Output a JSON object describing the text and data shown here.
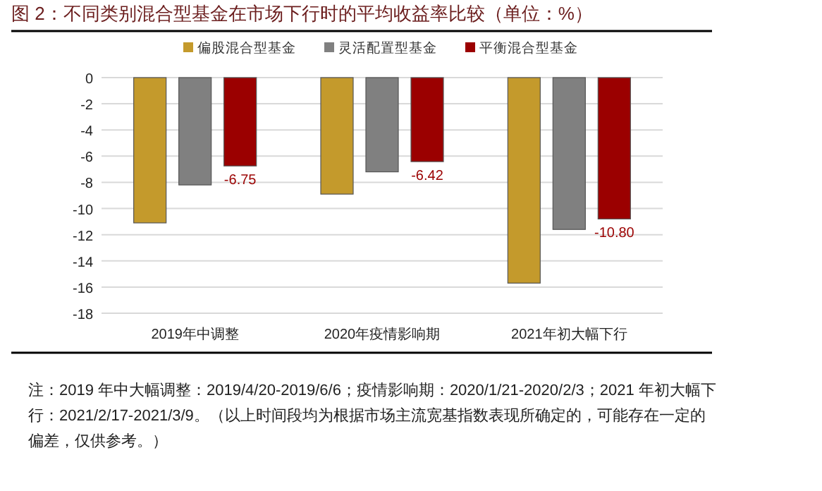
{
  "chart_data": {
    "type": "bar",
    "title": "图 2：不同类别混合型基金在市场下行时的平均收益率比较（单位：%）",
    "categories": [
      "2019年中调整",
      "2020年疫情影响期",
      "2021年初大幅下行"
    ],
    "series": [
      {
        "name": "偏股混合型基金",
        "color": "#c49a2c",
        "values": [
          -11.1,
          -8.9,
          -15.7
        ]
      },
      {
        "name": "灵活配置型基金",
        "color": "#808080",
        "values": [
          -8.2,
          -7.2,
          -11.6
        ]
      },
      {
        "name": "平衡混合型基金",
        "color": "#9b0000",
        "values": [
          -6.75,
          -6.42,
          -10.8
        ],
        "value_labels": [
          "-6.75",
          "-6.42",
          "-10.80"
        ]
      }
    ],
    "ylim": [
      -18,
      0
    ],
    "yticks": [
      0,
      -2,
      -4,
      -6,
      -8,
      -10,
      -12,
      -14,
      -16,
      -18
    ],
    "grid": "y",
    "legend": "top",
    "annotations": [
      "注：2019 年中大幅调整：2019/4/20-2019/6/6；疫情影响期：2020/1/21-2020/2/3；2021 年初大幅下行：2021/2/17-2021/3/9。（以上时间段均为根据市场主流宽基指数表现所确定的，可能存在一定的偏差，仅供参考。）"
    ]
  }
}
